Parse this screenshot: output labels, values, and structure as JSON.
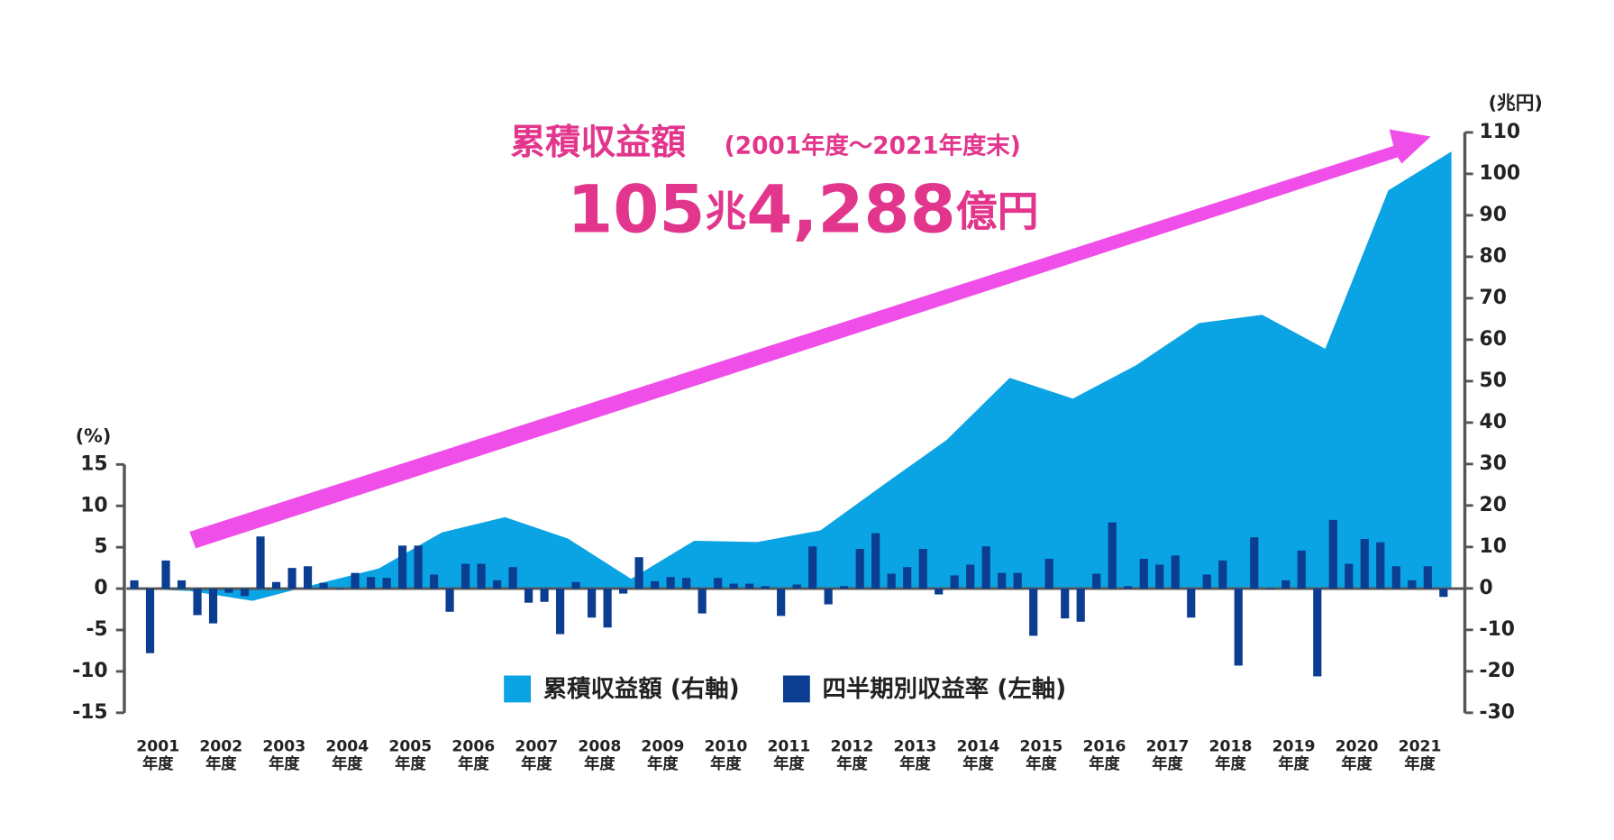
{
  "chart_data": {
    "type": "bar-area",
    "title": "累積収益額",
    "subtitle": "(2001年度〜2021年度末)",
    "headline": [
      "105",
      "兆",
      "4,288",
      "億円"
    ],
    "y_label": "(%)",
    "y2_label": "(兆円)",
    "categories": [
      "2001年度",
      "2002年度",
      "2003年度",
      "2004年度",
      "2005年度",
      "2006年度",
      "2007年度",
      "2008年度",
      "2009年度",
      "2010年度",
      "2011年度",
      "2012年度",
      "2013年度",
      "2014年度",
      "2015年度",
      "2016年度",
      "2017年度",
      "2018年度",
      "2019年度",
      "2020年度",
      "2021年度"
    ],
    "ylim": [
      -15,
      15
    ],
    "yticks": [
      15,
      10,
      5,
      0,
      -5,
      -10,
      -15
    ],
    "y2lim": [
      -30,
      110
    ],
    "y2ticks": [
      110,
      100,
      90,
      80,
      70,
      60,
      50,
      40,
      30,
      20,
      10,
      0,
      -10,
      -20,
      -30
    ],
    "legend": "bottom-center",
    "series": [
      {
        "name": "累積収益額 (右軸)",
        "color": "#0aa3e3",
        "axis": "y2",
        "kind": "area",
        "values": [
          -0.6,
          -3,
          1,
          4.8,
          13.5,
          17.2,
          12,
          2.3,
          11.5,
          11.2,
          14,
          25,
          35.8,
          50.8,
          45.8,
          53.8,
          64,
          66,
          57.8,
          96,
          105.4
        ]
      },
      {
        "name": "四半期別収益率 (左軸)",
        "color": "#0b3d91",
        "kind": "bar",
        "values": [
          [
            1.0,
            -7.8,
            3.4,
            1.0
          ],
          [
            -3.2,
            -4.2,
            -0.5,
            -0.9
          ],
          [
            6.3,
            0.8,
            2.5,
            2.7
          ],
          [
            0.7,
            -0.1,
            1.9,
            1.4
          ],
          [
            1.3,
            5.2,
            5.2,
            1.7
          ],
          [
            -2.8,
            3.0,
            3.0,
            1.0
          ],
          [
            2.6,
            -1.7,
            -1.6,
            -5.5
          ],
          [
            0.8,
            -3.5,
            -4.7,
            -0.6
          ],
          [
            3.8,
            0.9,
            1.4,
            1.3
          ],
          [
            -3.0,
            1.3,
            0.6,
            0.6
          ],
          [
            0.3,
            -3.3,
            0.5,
            5.1
          ],
          [
            -1.9,
            0.3,
            4.8,
            6.7
          ],
          [
            1.8,
            2.6,
            4.8,
            -0.7
          ],
          [
            1.6,
            2.9,
            5.1,
            1.9
          ],
          [
            1.9,
            -5.7,
            3.6,
            -3.6
          ],
          [
            -4.0,
            1.8,
            8.0,
            0.3
          ],
          [
            3.6,
            2.9,
            4.0,
            -3.5
          ],
          [
            1.7,
            3.4,
            -9.3,
            6.2
          ],
          [
            -0.1,
            1.0,
            4.6,
            -10.6
          ],
          [
            8.3,
            3.0,
            6.0,
            5.6
          ],
          [
            2.7,
            1.0,
            2.7,
            -1.0
          ]
        ]
      }
    ]
  }
}
